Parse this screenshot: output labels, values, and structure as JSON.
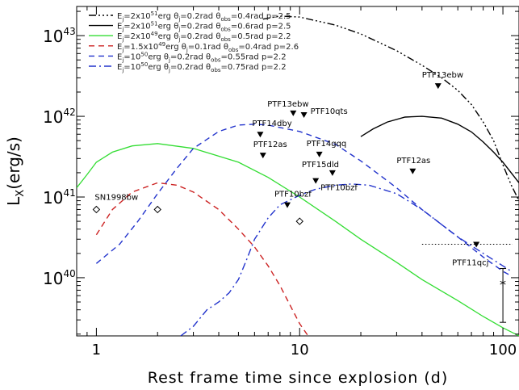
{
  "chart_data": {
    "type": "line",
    "title": "",
    "xlabel": "Rest frame time since explosion (d)",
    "ylabel": "L_X(erg/s)",
    "xscale": "log",
    "yscale": "log",
    "xlim": [
      0.8,
      120
    ],
    "ylim": [
      1.9e+39,
      2.3e+43
    ],
    "x_ticks": [
      {
        "value": 1,
        "label": "1"
      },
      {
        "value": 10,
        "label": "10"
      },
      {
        "value": 100,
        "label": "100"
      }
    ],
    "y_ticks": [
      {
        "value": 1e+40,
        "base": "10",
        "exp": "40"
      },
      {
        "value": 1e+41,
        "base": "10",
        "exp": "41"
      },
      {
        "value": 1e+42,
        "base": "10",
        "exp": "42"
      },
      {
        "value": 1e+43,
        "base": "10",
        "exp": "43"
      }
    ],
    "legend_position": "top-left",
    "series": [
      {
        "name": "E_j=2x10^51 erg θ_j=0.2rad θ_obs=0.4rad p=2.5",
        "legend_parts": [
          [
            "E",
            "j",
            "=2x10",
            "51",
            "erg θ",
            "j",
            "=0.2rad θ",
            "obs",
            "=0.4rad p=2.5"
          ]
        ],
        "color": "#000000",
        "dash": "dashdotdotdot",
        "points": [
          [
            6.6,
            1.6e+43
          ],
          [
            8,
            1.75e+43
          ],
          [
            10,
            1.7e+43
          ],
          [
            15,
            1.35e+43
          ],
          [
            20,
            1.05e+43
          ],
          [
            30,
            6.5e+42
          ],
          [
            40,
            4.3e+42
          ],
          [
            50,
            3e+42
          ],
          [
            60,
            2.1e+42
          ],
          [
            70,
            1.4e+42
          ],
          [
            80,
            8.5e+41
          ],
          [
            90,
            5e+41
          ],
          [
            100,
            2.5e+41
          ],
          [
            110,
            1.4e+41
          ],
          [
            120,
            9e+40
          ]
        ]
      },
      {
        "name": "E_j=2x10^51 erg θ_j=0.2rad θ_obs=0.6rad p=2.5",
        "legend_parts": [
          [
            "E",
            "j",
            "=2x10",
            "51",
            "erg θ",
            "j",
            "=0.2rad θ",
            "obs",
            "=0.6rad p=2.5"
          ]
        ],
        "color": "#000000",
        "dash": "solid",
        "points": [
          [
            20,
            5.6e+41
          ],
          [
            23,
            7e+41
          ],
          [
            27,
            8.5e+41
          ],
          [
            33,
            9.8e+41
          ],
          [
            40,
            1e+42
          ],
          [
            50,
            9.5e+41
          ],
          [
            60,
            8e+41
          ],
          [
            70,
            6.4e+41
          ],
          [
            80,
            4.8e+41
          ],
          [
            90,
            3.6e+41
          ],
          [
            100,
            2.7e+41
          ],
          [
            120,
            1.5e+41
          ]
        ]
      },
      {
        "name": "E_j=2x10^49 erg θ_j=0.2rad θ_obs=0.5rad p=2.2",
        "legend_parts": [
          [
            "E",
            "j",
            "=2x10",
            "49",
            "erg θ",
            "j",
            "=0.2rad θ",
            "obs",
            "=0.5rad p=2.2"
          ]
        ],
        "color": "#33dd33",
        "dash": "solid",
        "points": [
          [
            0.8,
            1.3e+41
          ],
          [
            0.9,
            1.9e+41
          ],
          [
            1,
            2.7e+41
          ],
          [
            1.2,
            3.6e+41
          ],
          [
            1.5,
            4.3e+41
          ],
          [
            2,
            4.6e+41
          ],
          [
            3,
            4e+41
          ],
          [
            5,
            2.7e+41
          ],
          [
            7,
            1.75e+41
          ],
          [
            10,
            1e+41
          ],
          [
            15,
            5e+40
          ],
          [
            20,
            3e+40
          ],
          [
            30,
            1.55e+40
          ],
          [
            40,
            9.5e+39
          ],
          [
            60,
            5.2e+39
          ],
          [
            80,
            3.3e+39
          ],
          [
            100,
            2.4e+39
          ],
          [
            120,
            1.9e+39
          ]
        ]
      },
      {
        "name": "E_j=1.5x10^49 erg θ_j=0.1rad θ_obs=0.4rad p=2.6",
        "legend_parts": [
          [
            "E",
            "j",
            "=1.5x10",
            "49",
            "erg θ",
            "j",
            "=0.1rad θ",
            "obs",
            "=0.4rad p=2.6"
          ]
        ],
        "color": "#cc2222",
        "dash": "dashed",
        "points": [
          [
            1,
            3.4e+40
          ],
          [
            1.2,
            7e+40
          ],
          [
            1.5,
            1.15e+41
          ],
          [
            2,
            1.5e+41
          ],
          [
            2.5,
            1.4e+41
          ],
          [
            3,
            1.15e+41
          ],
          [
            4,
            7e+40
          ],
          [
            5,
            4e+40
          ],
          [
            6,
            2.4e+40
          ],
          [
            7,
            1.4e+40
          ],
          [
            8,
            8e+39
          ],
          [
            9,
            4.5e+39
          ],
          [
            10,
            2.7e+39
          ],
          [
            11,
            1.9e+39
          ]
        ]
      },
      {
        "name": "E_j=10^50 erg θ_j=0.2rad θ_obs=0.55rad p=2.2",
        "legend_parts": [
          [
            "E",
            "j",
            "=10",
            "50",
            "erg θ",
            "j",
            "=0.2rad θ",
            "obs",
            "=0.55rad p=2.2"
          ]
        ],
        "color": "#2233cc",
        "dash": "dashed",
        "points": [
          [
            1,
            1.5e+40
          ],
          [
            1.3,
            2.6e+40
          ],
          [
            1.6,
            5e+40
          ],
          [
            2,
            1.1e+41
          ],
          [
            2.5,
            2.3e+41
          ],
          [
            3,
            4e+41
          ],
          [
            4,
            6.5e+41
          ],
          [
            5,
            7.8e+41
          ],
          [
            6,
            8e+41
          ],
          [
            7,
            7.8e+41
          ],
          [
            10,
            6.5e+41
          ],
          [
            15,
            4.5e+41
          ],
          [
            20,
            2.8e+41
          ],
          [
            30,
            1.3e+41
          ],
          [
            40,
            7e+40
          ],
          [
            60,
            3.2e+40
          ],
          [
            80,
            1.8e+40
          ],
          [
            100,
            1.2e+40
          ],
          [
            110,
            1.05e+40
          ]
        ]
      },
      {
        "name": "E_j=10^50 erg θ_j=0.2rad θ_obs=0.75rad p=2.2",
        "legend_parts": [
          [
            "E",
            "j",
            "=10",
            "50",
            "erg θ",
            "j",
            "=0.2rad θ",
            "obs",
            "=0.75rad p=2.2"
          ]
        ],
        "color": "#2233cc",
        "dash": "dashdot",
        "points": [
          [
            2.6,
            1.9e+39
          ],
          [
            3,
            2.5e+39
          ],
          [
            3.5,
            4e+39
          ],
          [
            4,
            5e+39
          ],
          [
            4.5,
            6.5e+39
          ],
          [
            5,
            9.5e+39
          ],
          [
            5.5,
            1.7e+40
          ],
          [
            6,
            3e+40
          ],
          [
            7,
            5.5e+40
          ],
          [
            8,
            8e+40
          ],
          [
            10,
            1.05e+41
          ],
          [
            12,
            1.25e+41
          ],
          [
            15,
            1.4e+41
          ],
          [
            18,
            1.45e+41
          ],
          [
            22,
            1.4e+41
          ],
          [
            30,
            1.1e+41
          ],
          [
            40,
            7e+40
          ],
          [
            60,
            3.2e+40
          ],
          [
            80,
            2e+40
          ],
          [
            100,
            1.4e+40
          ],
          [
            110,
            1.2e+40
          ]
        ]
      }
    ],
    "upper_limits": [
      {
        "label": "PTF13ebw",
        "x": 48,
        "y": 2.4e+42,
        "label_dx": -20,
        "label_dy": -10
      },
      {
        "label": "PTF13ebw",
        "x": 9.3,
        "y": 1.1e+42,
        "label_dx": -32,
        "label_dy": -8
      },
      {
        "label": "PTF10qts",
        "x": 10.5,
        "y": 1.05e+42,
        "label_dx": 8,
        "label_dy": -1
      },
      {
        "label": "PTF14dby",
        "x": 6.4,
        "y": 6e+41,
        "label_dx": -10,
        "label_dy": -10
      },
      {
        "label": "PTF12as",
        "x": 6.6,
        "y": 3.3e+41,
        "label_dx": -12,
        "label_dy": -10
      },
      {
        "label": "PTF14gqq",
        "x": 12.5,
        "y": 3.4e+41,
        "label_dx": -16,
        "label_dy": -10
      },
      {
        "label": "PTF15dld",
        "x": 14.5,
        "y": 2e+41,
        "label_dx": -38,
        "label_dy": -7
      },
      {
        "label": "PTF12as",
        "x": 36,
        "y": 2.1e+41,
        "label_dx": -20,
        "label_dy": -10
      },
      {
        "label": "PTF10bzf",
        "x": 12,
        "y": 1.6e+41,
        "label_dx": 6,
        "label_dy": 12
      },
      {
        "label": "PTF10bzf",
        "x": 8.7,
        "y": 8e+40,
        "label_dx": -16,
        "label_dy": -10
      },
      {
        "label": "PTF11qcj",
        "x": 74,
        "y": 2.6e+40,
        "label_dx": -30,
        "label_dy": 26
      }
    ],
    "detections": [
      {
        "x": 1,
        "y": 7e+40
      },
      {
        "x": 2,
        "y": 7e+40
      },
      {
        "x": 10,
        "y": 5e+40
      }
    ],
    "detection_label": {
      "text": "SN1998bw",
      "x": 1,
      "y": 7e+40
    },
    "asterisk_point": {
      "x": 100,
      "y": 8.5e+39,
      "err_low": 2.8e+39,
      "err_high": 1.3e+40
    },
    "horizontal_limit": {
      "x_from": 40,
      "x_to": 120,
      "y": 2.6e+40
    }
  }
}
